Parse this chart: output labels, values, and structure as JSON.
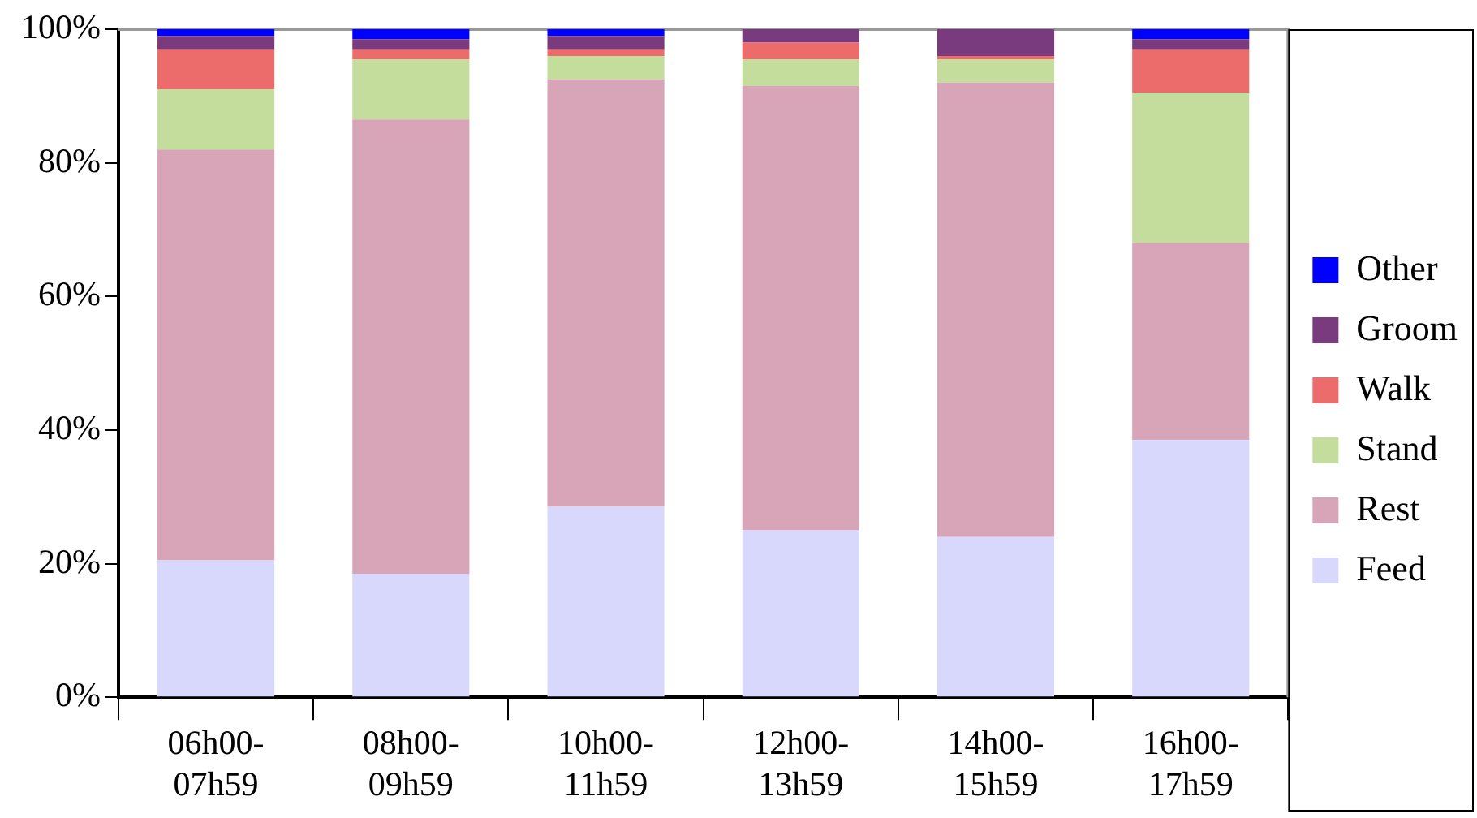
{
  "chart_data": {
    "type": "bar",
    "stacked": true,
    "categories": [
      "06h00-07h59",
      "08h00-09h59",
      "10h00-11h59",
      "12h00-13h59",
      "14h00-15h59",
      "16h00-17h59"
    ],
    "series": [
      {
        "name": "Feed",
        "color": "#d8d8fc",
        "values": [
          20.5,
          18.5,
          28.5,
          25,
          24,
          38.5
        ]
      },
      {
        "name": "Rest",
        "color": "#d8a4b8",
        "values": [
          61.5,
          68,
          64,
          66.5,
          68,
          29.5
        ]
      },
      {
        "name": "Stand",
        "color": "#c4dc9c",
        "values": [
          9,
          9,
          3.5,
          4,
          3.5,
          22.5
        ]
      },
      {
        "name": "Walk",
        "color": "#ec6c6c",
        "values": [
          6,
          1.5,
          1,
          2.5,
          0.5,
          6.5
        ]
      },
      {
        "name": "Groom",
        "color": "#7a3a7e",
        "values": [
          2,
          1.5,
          2,
          2,
          4,
          1.5
        ]
      },
      {
        "name": "Other",
        "color": "#0000ff",
        "values": [
          1,
          1.5,
          1,
          0,
          0,
          1.5
        ]
      }
    ],
    "ylim": [
      0,
      100
    ],
    "yticks": [
      {
        "value": 0,
        "label": "0%"
      },
      {
        "value": 20,
        "label": "20%"
      },
      {
        "value": 40,
        "label": "40%"
      },
      {
        "value": 60,
        "label": "60%"
      },
      {
        "value": 80,
        "label": "80%"
      },
      {
        "value": 100,
        "label": "100%"
      }
    ],
    "grid": false,
    "legend": "right"
  }
}
